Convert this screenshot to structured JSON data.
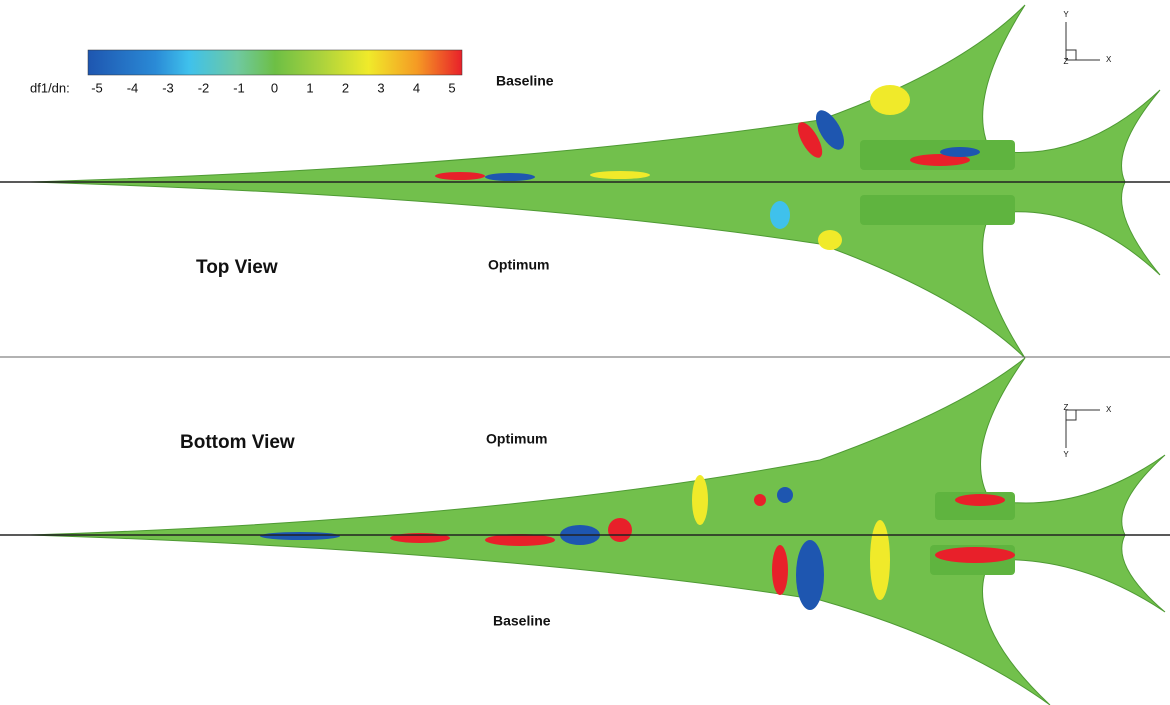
{
  "colorbar": {
    "label": "df1/dn:",
    "ticks": [
      "-5",
      "-4",
      "-3",
      "-2",
      "-1",
      "0",
      "1",
      "2",
      "3",
      "4",
      "5"
    ]
  },
  "top_view": {
    "title": "Top View",
    "upper_label": "Baseline",
    "lower_label": "Optimum",
    "axes": {
      "vertical": "Y",
      "origin": "Z",
      "horizontal": "X"
    }
  },
  "bottom_view": {
    "title": "Bottom View",
    "upper_label": "Optimum",
    "lower_label": "Baseline",
    "axes": {
      "vertical": "Y",
      "origin": "Z",
      "horizontal": "X"
    }
  }
}
